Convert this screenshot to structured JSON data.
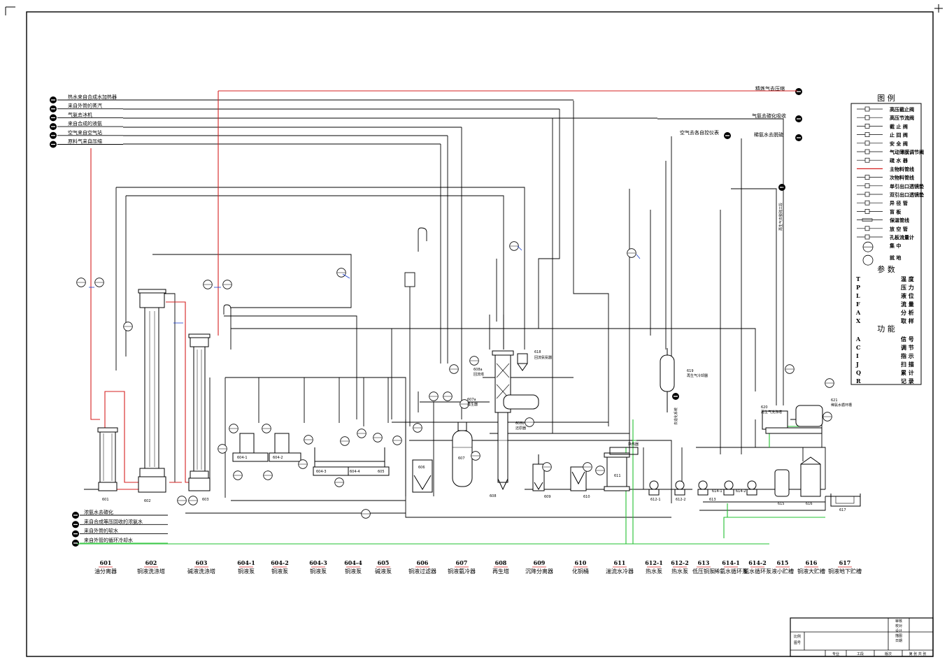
{
  "colors": {
    "line": "#000000",
    "main_pipe": "#d42020",
    "cooling_water": "#22c030",
    "instrument_link": "#1a3fd0",
    "paper": "#ffffff"
  },
  "left_inlets_top": [
    "热水来自合成水加热器",
    "来自外管的蒸汽",
    "气氨去冰机",
    "来自合成的液氨",
    "空气来自空气站",
    "原料气来自压缩"
  ],
  "left_inlets_bottom": [
    "浓氨水去碳化",
    "来自合成等压回收的浓氨水",
    "来自外管的软水",
    "来自外管的循环冷却水"
  ],
  "right_outlets": [
    "精炼气去压缩",
    "气氨去碳化吸收",
    "空气去各自控仪表",
    "稀氨水去脱硫"
  ],
  "vertical_labels": [
    "再生气去脱硫工段",
    "去造化系统"
  ],
  "legend": {
    "title": "图 例",
    "symbols": [
      {
        "icon": "hp-stop-valve-icon",
        "label": "高压截止阀"
      },
      {
        "icon": "hp-throttle-valve-icon",
        "label": "高压节流阀"
      },
      {
        "icon": "stop-valve-icon",
        "label": "截 止 阀"
      },
      {
        "icon": "check-valve-icon",
        "label": "止 回 阀"
      },
      {
        "icon": "safety-valve-icon",
        "label": "安 全 阀"
      },
      {
        "icon": "pneumatic-valve-icon",
        "label": "气动薄膜调节阀"
      },
      {
        "icon": "steam-trap-icon",
        "label": "疏 水 器"
      },
      {
        "icon": "main-pipe-icon",
        "label": "主物料管线"
      },
      {
        "icon": "sub-pipe-icon",
        "label": "次物料管线"
      },
      {
        "icon": "single-gauge-icon",
        "label": "单引出口透镜垫"
      },
      {
        "icon": "double-gauge-icon",
        "label": "双引出口透镜垫"
      },
      {
        "icon": "reducer-icon",
        "label": "异 径 管"
      },
      {
        "icon": "blind-plate-icon",
        "label": "盲 板"
      },
      {
        "icon": "insulated-pipe-icon",
        "label": "保温管线"
      },
      {
        "icon": "vent-pipe-icon",
        "label": "放 空 管"
      },
      {
        "icon": "orifice-icon",
        "label": "孔板流量计"
      },
      {
        "icon": "central-icon",
        "label": "集 中"
      },
      {
        "icon": "local-icon",
        "label": "就 地"
      }
    ],
    "params_title": "参 数",
    "params": [
      {
        "code": "T",
        "label": "温 度"
      },
      {
        "code": "P",
        "label": "压 力"
      },
      {
        "code": "L",
        "label": "液 位"
      },
      {
        "code": "F",
        "label": "流 量"
      },
      {
        "code": "A",
        "label": "分 析"
      },
      {
        "code": "X",
        "label": "取 样"
      }
    ],
    "funcs_title": "功 能",
    "funcs": [
      {
        "code": "A",
        "label": "信 号"
      },
      {
        "code": "C",
        "label": "调 节"
      },
      {
        "code": "I",
        "label": "指 示"
      },
      {
        "code": "J",
        "label": "扫 描"
      },
      {
        "code": "Q",
        "label": "累 计"
      },
      {
        "code": "R",
        "label": "记 录"
      }
    ]
  },
  "equipment_list": [
    {
      "no": "601",
      "name": "油分离器"
    },
    {
      "no": "602",
      "name": "铜液洗涤塔"
    },
    {
      "no": "603",
      "name": "碱液洗涤塔"
    },
    {
      "no": "604-1",
      "name": "铜液泵"
    },
    {
      "no": "604-2",
      "name": "铜液泵"
    },
    {
      "no": "604-3",
      "name": "铜液泵"
    },
    {
      "no": "604-4",
      "name": "铜液泵"
    },
    {
      "no": "605",
      "name": "碱液泵"
    },
    {
      "no": "606",
      "name": "铜液过滤器"
    },
    {
      "no": "607",
      "name": "铜液氨冷器"
    },
    {
      "no": "608",
      "name": "再生塔"
    },
    {
      "no": "609",
      "name": "沉降分离器"
    },
    {
      "no": "610",
      "name": "化铜桶"
    },
    {
      "no": "611",
      "name": "湍流水冷器"
    },
    {
      "no": "612-1",
      "name": "热水泵"
    },
    {
      "no": "612-2",
      "name": "热水泵"
    },
    {
      "no": "613",
      "name": "低压铜泵"
    },
    {
      "no": "614-1",
      "name": "稀氨水循环泵"
    },
    {
      "no": "614-2",
      "name": "氨水循环泵"
    },
    {
      "no": "615",
      "name": "液小贮槽"
    },
    {
      "no": "616",
      "name": "铜液大贮槽"
    },
    {
      "no": "617",
      "name": "铜液地下贮槽"
    }
  ],
  "drawing_labels": {
    "u601": "601",
    "u602": "602",
    "u603": "603",
    "u604_1": "604-1",
    "u604_2": "604-2",
    "u604_3": "604-3",
    "u604_4": "604-4",
    "u605": "605",
    "u606": "606",
    "u607": "607",
    "u608": "608",
    "u609": "609",
    "u610": "610",
    "u611": "611",
    "u612_1": "612-1",
    "u612_2": "612-2",
    "u613": "613",
    "u614_1": "614-1",
    "u614_2": "614-2",
    "u615": "615",
    "u616": "616",
    "u617": "617",
    "u618": "618",
    "u618_name": "回流氨氨器",
    "u619": "619",
    "u619_name": "再生气冷却器",
    "u620": "620",
    "u620_name": "再生气洗涤塔",
    "u621": "621",
    "u621_name": "稀氨水循环槽",
    "u607_tag": "607a",
    "u607_sub": "再生器",
    "u608_tag": "608a",
    "u608_sub": "回流塔",
    "u608b_tag": "608b",
    "u608b_sub": "还原器",
    "u611_mark": "换热器"
  },
  "title_block": {
    "rows_right": [
      "审核",
      "校对",
      "设计",
      "描图",
      "日期"
    ],
    "rows_left": [
      "比例",
      "图号"
    ],
    "bottom_cells": [
      "专业",
      "工段",
      "版次",
      "第 张 共 张"
    ]
  }
}
